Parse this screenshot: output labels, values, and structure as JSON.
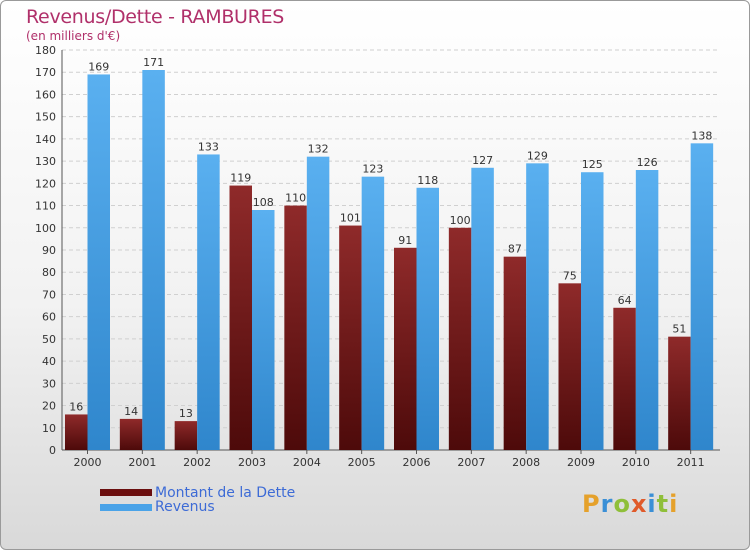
{
  "header": {
    "title": "Revenus/Dette - RAMBURES",
    "subtitle": "(en milliers d'€)"
  },
  "chart_data": {
    "type": "bar",
    "title": "Revenus/Dette - RAMBURES",
    "ylabel": "(en milliers d'€)",
    "xlabel": "",
    "ylim": [
      0,
      180
    ],
    "yticks": [
      0,
      10,
      20,
      30,
      40,
      50,
      60,
      70,
      80,
      90,
      100,
      110,
      120,
      130,
      140,
      150,
      160,
      170,
      180
    ],
    "grid": "horizontal",
    "legend_position": "bottom-left",
    "categories": [
      "2000",
      "2001",
      "2002",
      "2003",
      "2004",
      "2005",
      "2006",
      "2007",
      "2008",
      "2009",
      "2010",
      "2011"
    ],
    "series": [
      {
        "name": "Montant de la Dette",
        "color": "#7a1e1e",
        "values": [
          16,
          14,
          13,
          119,
          110,
          101,
          91,
          100,
          87,
          75,
          64,
          51
        ]
      },
      {
        "name": "Revenus",
        "color": "#4aa3e8",
        "values": [
          169,
          171,
          133,
          108,
          132,
          123,
          118,
          127,
          129,
          125,
          126,
          138
        ]
      }
    ]
  },
  "legend": {
    "items": [
      {
        "label": "Montant de la Dette",
        "color": "#6b0f0f"
      },
      {
        "label": "Revenus",
        "color": "#4aa3e8"
      }
    ]
  },
  "logo": {
    "letters": [
      "P",
      "r",
      "o",
      "x",
      "i",
      "t",
      "i"
    ],
    "colors": [
      "#e5a12b",
      "#3a8fd6",
      "#8fbf3a",
      "#e05a2a",
      "#3a8fd6",
      "#8fbf3a",
      "#e5a12b"
    ]
  }
}
